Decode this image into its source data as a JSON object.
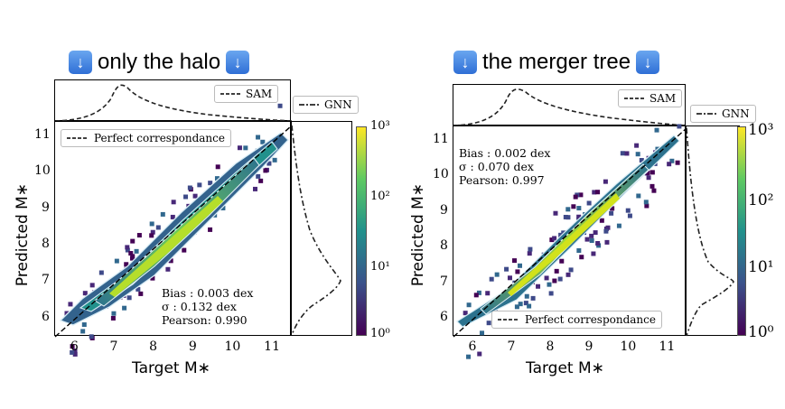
{
  "panels": [
    {
      "id": "halo",
      "title": "only the halo",
      "title_icon": "down-arrow-icon",
      "xlabel": "Target M∗",
      "ylabel": "Predicted M∗",
      "xticks": [
        "6",
        "7",
        "8",
        "9",
        "10",
        "11"
      ],
      "yticks": [
        "6",
        "7",
        "8",
        "9",
        "10",
        "11"
      ],
      "legend_main": "Perfect correspondance",
      "legend_sam": "SAM",
      "legend_gnn": "GNN",
      "stats": [
        "Bias : 0.003 dex",
        "σ : 0.132 dex",
        "Pearson:  0.990"
      ],
      "colorbar_ticks": [
        "10³",
        "10²",
        "10¹",
        "10⁰"
      ]
    },
    {
      "id": "merger-tree",
      "title": "the merger tree",
      "title_icon": "down-arrow-icon",
      "xlabel": "Target M∗",
      "ylabel": "Predicted M∗",
      "xticks": [
        "6",
        "7",
        "8",
        "9",
        "10",
        "11"
      ],
      "yticks": [
        "6",
        "7",
        "8",
        "9",
        "10",
        "11"
      ],
      "legend_main": "Perfect correspondance",
      "legend_sam": "SAM",
      "legend_gnn": "GNN",
      "stats": [
        "Bias : 0.002 dex",
        "σ : 0.070 dex",
        "Pearson:  0.997"
      ],
      "colorbar_ticks": [
        "10³",
        "10²",
        "10¹",
        "10⁰"
      ]
    }
  ],
  "colors": {
    "cmap_low": "#440154",
    "cmap_mid": "#21918c",
    "cmap_high": "#fde725",
    "contour": "#d8ecf5"
  },
  "chart_data": [
    {
      "type": "heatmap",
      "title": "only the halo",
      "xlabel": "Target M∗",
      "ylabel": "Predicted M∗",
      "xlim": [
        5.5,
        11.5
      ],
      "ylim": [
        5.5,
        11.4
      ],
      "colorbar_scale": "log",
      "colorbar_range": [
        1,
        1000
      ],
      "reference_line": "Perfect correspondance",
      "bias_dex": 0.003,
      "sigma_dex": 0.132,
      "pearson": 0.99,
      "marginals": [
        "SAM",
        "GNN"
      ]
    },
    {
      "type": "heatmap",
      "title": "the merger tree",
      "xlabel": "Target M∗",
      "ylabel": "Predicted M∗",
      "xlim": [
        5.5,
        11.5
      ],
      "ylim": [
        5.5,
        11.4
      ],
      "colorbar_scale": "log",
      "colorbar_range": [
        1,
        1000
      ],
      "reference_line": "Perfect correspondance",
      "bias_dex": 0.002,
      "sigma_dex": 0.07,
      "pearson": 0.997,
      "marginals": [
        "SAM",
        "GNN"
      ]
    }
  ]
}
